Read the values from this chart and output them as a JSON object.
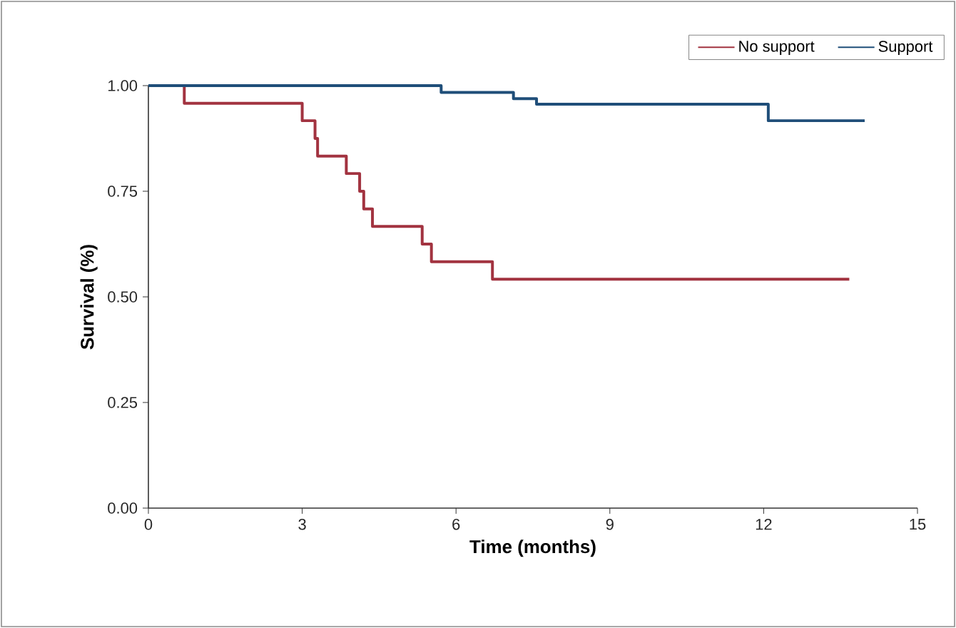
{
  "chart_data": {
    "type": "step",
    "xlabel": "Time (months)",
    "ylabel": "Survival (%)",
    "xlim": [
      0,
      15
    ],
    "ylim": [
      0,
      1
    ],
    "xticks": [
      0,
      3,
      6,
      9,
      12,
      15
    ],
    "yticks": [
      {
        "value": 0,
        "label": "0.00"
      },
      {
        "value": 0.25,
        "label": "0.25"
      },
      {
        "value": 0.5,
        "label": "0.50"
      },
      {
        "value": 0.75,
        "label": "0.75"
      },
      {
        "value": 1,
        "label": "1.00"
      }
    ],
    "legend": "top right",
    "line_style": "solid",
    "series": [
      {
        "name": "No support",
        "color": "#a23340",
        "x": [
          0,
          0.7,
          3.0,
          3.25,
          3.3,
          3.86,
          4.12,
          4.2,
          4.37,
          5.34,
          5.52,
          6.71,
          13.67
        ],
        "values": [
          1.0,
          0.958,
          0.917,
          0.875,
          0.833,
          0.792,
          0.75,
          0.708,
          0.667,
          0.625,
          0.583,
          0.542,
          0.542
        ]
      },
      {
        "name": "Support",
        "color": "#1f4e79",
        "x": [
          0,
          5.71,
          7.12,
          7.57,
          12.09,
          13.97
        ],
        "values": [
          1.0,
          0.984,
          0.969,
          0.956,
          0.917,
          0.917
        ]
      }
    ]
  }
}
